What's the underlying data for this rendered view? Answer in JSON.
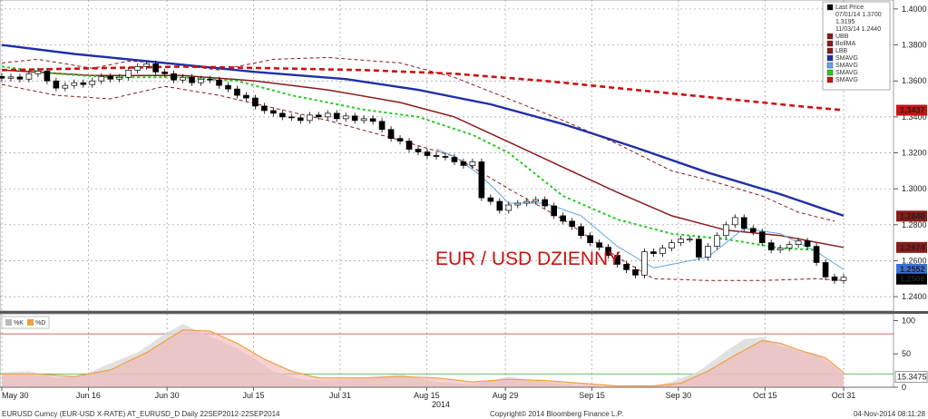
{
  "chart_data": [
    {
      "type": "line",
      "subtype": "candlestick",
      "annotation": "EUR / USD DZIENNY",
      "ylim": [
        1.232,
        1.405
      ],
      "y_ticks": [
        "1.4000",
        "1.3800",
        "1.3600",
        "1.3400",
        "1.3200",
        "1.3000",
        "1.2800",
        "1.2600",
        "1.2400"
      ],
      "x_ticks": [
        "May 30",
        "Jun 16",
        "Jun 30",
        "Jul 15",
        "Jul 31",
        "Aug 15",
        "Aug 29",
        "Sep 15",
        "Sep 30",
        "Oct 15",
        "Oct 31"
      ],
      "x_year": "2014",
      "legend": [
        {
          "name": "Last Price",
          "color": "#000000",
          "sub": [
            "07/01/14 1.3700",
            "1.3195",
            "11/03/14 1.2440"
          ]
        },
        {
          "name": "UBB",
          "color": "#8b1a1a"
        },
        {
          "name": "BollMA",
          "color": "#8b1a1a"
        },
        {
          "name": "LBB",
          "color": "#8b1a1a"
        },
        {
          "name": "SMAVG",
          "color": "#1f2fa8"
        },
        {
          "name": "SMAVG",
          "color": "#5fa5e6"
        },
        {
          "name": "SMAVG",
          "color": "#22cc22"
        },
        {
          "name": "SMAVG",
          "color": "#cc1111"
        }
      ],
      "price_labels": [
        {
          "value": "1.3437",
          "color": "#cc1111"
        },
        {
          "value": "1.2848",
          "color": "#8b1a1a"
        },
        {
          "value": "1.2674",
          "color": "#8b1a1a"
        },
        {
          "value": "1.2552",
          "color": "#3b6fd8"
        },
        {
          "value": "1.2508",
          "color": "#000000"
        }
      ],
      "close": [
        1.3615,
        1.3622,
        1.361,
        1.364,
        1.3655,
        1.36,
        1.356,
        1.3575,
        1.359,
        1.358,
        1.36,
        1.3625,
        1.361,
        1.362,
        1.366,
        1.368,
        1.3695,
        1.365,
        1.364,
        1.3605,
        1.362,
        1.359,
        1.361,
        1.3605,
        1.3575,
        1.3555,
        1.352,
        1.3505,
        1.346,
        1.3435,
        1.342,
        1.34,
        1.3395,
        1.338,
        1.341,
        1.34,
        1.342,
        1.339,
        1.3405,
        1.338,
        1.339,
        1.3375,
        1.333,
        1.328,
        1.3265,
        1.322,
        1.3205,
        1.3185,
        1.318,
        1.3175,
        1.315,
        1.313,
        1.315,
        1.295,
        1.293,
        1.288,
        1.291,
        1.292,
        1.293,
        1.294,
        1.2905,
        1.285,
        1.282,
        1.279,
        1.274,
        1.27,
        1.2675,
        1.263,
        1.258,
        1.255,
        1.252,
        1.265,
        1.264,
        1.267,
        1.27,
        1.272,
        1.272,
        1.262,
        1.268,
        1.274,
        1.28,
        1.284,
        1.278,
        1.276,
        1.27,
        1.266,
        1.267,
        1.269,
        1.271,
        1.268,
        1.259,
        1.251,
        1.249,
        1.2508
      ],
      "series": [
        {
          "name": "UBB",
          "values": [
            {
              "x": 0,
              "y": 1.37
            },
            {
              "x": 4,
              "y": 1.372
            },
            {
              "x": 10,
              "y": 1.367
            },
            {
              "x": 14,
              "y": 1.371
            },
            {
              "x": 18,
              "y": 1.37
            },
            {
              "x": 24,
              "y": 1.366
            },
            {
              "x": 30,
              "y": 1.372
            },
            {
              "x": 36,
              "y": 1.373
            },
            {
              "x": 44,
              "y": 1.37
            },
            {
              "x": 50,
              "y": 1.362
            },
            {
              "x": 56,
              "y": 1.35
            },
            {
              "x": 62,
              "y": 1.338
            },
            {
              "x": 68,
              "y": 1.325
            },
            {
              "x": 74,
              "y": 1.31
            },
            {
              "x": 78,
              "y": 1.305
            },
            {
              "x": 84,
              "y": 1.296
            },
            {
              "x": 88,
              "y": 1.287
            },
            {
              "x": 92,
              "y": 1.282
            }
          ]
        },
        {
          "name": "BollMA",
          "values": [
            {
              "x": 0,
              "y": 1.366
            },
            {
              "x": 10,
              "y": 1.363
            },
            {
              "x": 20,
              "y": 1.363
            },
            {
              "x": 28,
              "y": 1.36
            },
            {
              "x": 36,
              "y": 1.355
            },
            {
              "x": 44,
              "y": 1.348
            },
            {
              "x": 50,
              "y": 1.34
            },
            {
              "x": 56,
              "y": 1.326
            },
            {
              "x": 62,
              "y": 1.312
            },
            {
              "x": 68,
              "y": 1.298
            },
            {
              "x": 74,
              "y": 1.285
            },
            {
              "x": 80,
              "y": 1.277
            },
            {
              "x": 86,
              "y": 1.274
            },
            {
              "x": 93,
              "y": 1.2674
            }
          ]
        },
        {
          "name": "LBB",
          "values": [
            {
              "x": 0,
              "y": 1.358
            },
            {
              "x": 6,
              "y": 1.352
            },
            {
              "x": 12,
              "y": 1.35
            },
            {
              "x": 18,
              "y": 1.357
            },
            {
              "x": 24,
              "y": 1.352
            },
            {
              "x": 30,
              "y": 1.345
            },
            {
              "x": 36,
              "y": 1.338
            },
            {
              "x": 44,
              "y": 1.327
            },
            {
              "x": 50,
              "y": 1.318
            },
            {
              "x": 56,
              "y": 1.3
            },
            {
              "x": 62,
              "y": 1.283
            },
            {
              "x": 68,
              "y": 1.262
            },
            {
              "x": 72,
              "y": 1.25
            },
            {
              "x": 78,
              "y": 1.249
            },
            {
              "x": 84,
              "y": 1.249
            },
            {
              "x": 90,
              "y": 1.25
            },
            {
              "x": 93,
              "y": 1.249
            }
          ]
        },
        {
          "name": "SMAVG",
          "color": "#1f2fa8",
          "values": [
            {
              "x": 0,
              "y": 1.38
            },
            {
              "x": 8,
              "y": 1.375
            },
            {
              "x": 18,
              "y": 1.37
            },
            {
              "x": 28,
              "y": 1.365
            },
            {
              "x": 38,
              "y": 1.361
            },
            {
              "x": 46,
              "y": 1.355
            },
            {
              "x": 54,
              "y": 1.347
            },
            {
              "x": 62,
              "y": 1.336
            },
            {
              "x": 70,
              "y": 1.323
            },
            {
              "x": 78,
              "y": 1.309
            },
            {
              "x": 86,
              "y": 1.297
            },
            {
              "x": 93,
              "y": 1.285
            }
          ]
        },
        {
          "name": "SMAVG",
          "color": "#5fa5e6",
          "values": [
            {
              "x": 48,
              "y": 1.322
            },
            {
              "x": 50,
              "y": 1.318
            },
            {
              "x": 53,
              "y": 1.307
            },
            {
              "x": 56,
              "y": 1.292
            },
            {
              "x": 60,
              "y": 1.292
            },
            {
              "x": 64,
              "y": 1.285
            },
            {
              "x": 68,
              "y": 1.268
            },
            {
              "x": 72,
              "y": 1.256
            },
            {
              "x": 74,
              "y": 1.258
            },
            {
              "x": 78,
              "y": 1.262
            },
            {
              "x": 82,
              "y": 1.278
            },
            {
              "x": 86,
              "y": 1.275
            },
            {
              "x": 90,
              "y": 1.265
            },
            {
              "x": 93,
              "y": 1.2552
            }
          ]
        },
        {
          "name": "SMAVG",
          "color": "#22cc22",
          "values": [
            {
              "x": 0,
              "y": 1.368
            },
            {
              "x": 6,
              "y": 1.364
            },
            {
              "x": 12,
              "y": 1.362
            },
            {
              "x": 20,
              "y": 1.362
            },
            {
              "x": 26,
              "y": 1.36
            },
            {
              "x": 32,
              "y": 1.352
            },
            {
              "x": 40,
              "y": 1.344
            },
            {
              "x": 46,
              "y": 1.34
            },
            {
              "x": 52,
              "y": 1.33
            },
            {
              "x": 56,
              "y": 1.32
            },
            {
              "x": 62,
              "y": 1.296
            },
            {
              "x": 68,
              "y": 1.283
            },
            {
              "x": 74,
              "y": 1.275
            },
            {
              "x": 80,
              "y": 1.272
            },
            {
              "x": 86,
              "y": 1.267
            },
            {
              "x": 90,
              "y": 1.266
            }
          ]
        },
        {
          "name": "SMAVG",
          "color": "#cc1111",
          "values": [
            {
              "x": 0,
              "y": 1.366
            },
            {
              "x": 10,
              "y": 1.367
            },
            {
              "x": 20,
              "y": 1.368
            },
            {
              "x": 30,
              "y": 1.367
            },
            {
              "x": 40,
              "y": 1.366
            },
            {
              "x": 50,
              "y": 1.364
            },
            {
              "x": 60,
              "y": 1.36
            },
            {
              "x": 70,
              "y": 1.355
            },
            {
              "x": 80,
              "y": 1.35
            },
            {
              "x": 88,
              "y": 1.346
            },
            {
              "x": 93,
              "y": 1.3437
            }
          ]
        }
      ]
    },
    {
      "type": "area",
      "legend": [
        {
          "name": "%K",
          "color": "#b8b8b8"
        },
        {
          "name": "%D",
          "color": "#f0a040"
        }
      ],
      "ylim": [
        0,
        110
      ],
      "y_ticks": [
        "100",
        "50",
        "0"
      ],
      "ref_lines": [
        {
          "y": 80,
          "color": "#cc3333"
        },
        {
          "y": 20,
          "color": "#33aa33"
        }
      ],
      "price_labels": [
        {
          "value": "15.3475",
          "color": "#ffffff"
        }
      ],
      "series": [
        {
          "name": "%K",
          "values": [
            {
              "x": 0,
              "y": 22
            },
            {
              "x": 3,
              "y": 24
            },
            {
              "x": 6,
              "y": 14
            },
            {
              "x": 9,
              "y": 18
            },
            {
              "x": 12,
              "y": 36
            },
            {
              "x": 15,
              "y": 52
            },
            {
              "x": 18,
              "y": 80
            },
            {
              "x": 20,
              "y": 95
            },
            {
              "x": 22,
              "y": 82
            },
            {
              "x": 24,
              "y": 70
            },
            {
              "x": 26,
              "y": 58
            },
            {
              "x": 28,
              "y": 42
            },
            {
              "x": 30,
              "y": 24
            },
            {
              "x": 33,
              "y": 12
            },
            {
              "x": 36,
              "y": 10
            },
            {
              "x": 40,
              "y": 14
            },
            {
              "x": 44,
              "y": 20
            },
            {
              "x": 48,
              "y": 8
            },
            {
              "x": 52,
              "y": 4
            },
            {
              "x": 56,
              "y": 16
            },
            {
              "x": 60,
              "y": 8
            },
            {
              "x": 64,
              "y": 2
            },
            {
              "x": 68,
              "y": 0
            },
            {
              "x": 72,
              "y": 2
            },
            {
              "x": 74,
              "y": 8
            },
            {
              "x": 77,
              "y": 24
            },
            {
              "x": 80,
              "y": 54
            },
            {
              "x": 82,
              "y": 72
            },
            {
              "x": 84,
              "y": 75
            },
            {
              "x": 86,
              "y": 62
            },
            {
              "x": 88,
              "y": 54
            },
            {
              "x": 90,
              "y": 50
            },
            {
              "x": 92,
              "y": 30
            },
            {
              "x": 93,
              "y": 18
            }
          ]
        },
        {
          "name": "%D",
          "values": [
            {
              "x": 0,
              "y": 20
            },
            {
              "x": 4,
              "y": 20
            },
            {
              "x": 8,
              "y": 16
            },
            {
              "x": 12,
              "y": 26
            },
            {
              "x": 16,
              "y": 52
            },
            {
              "x": 20,
              "y": 86
            },
            {
              "x": 23,
              "y": 84
            },
            {
              "x": 26,
              "y": 66
            },
            {
              "x": 29,
              "y": 42
            },
            {
              "x": 32,
              "y": 24
            },
            {
              "x": 35,
              "y": 14
            },
            {
              "x": 40,
              "y": 14
            },
            {
              "x": 44,
              "y": 16
            },
            {
              "x": 48,
              "y": 14
            },
            {
              "x": 52,
              "y": 8
            },
            {
              "x": 56,
              "y": 12
            },
            {
              "x": 60,
              "y": 10
            },
            {
              "x": 64,
              "y": 6
            },
            {
              "x": 68,
              "y": 2
            },
            {
              "x": 72,
              "y": 2
            },
            {
              "x": 75,
              "y": 6
            },
            {
              "x": 78,
              "y": 24
            },
            {
              "x": 81,
              "y": 48
            },
            {
              "x": 84,
              "y": 70
            },
            {
              "x": 86,
              "y": 66
            },
            {
              "x": 88,
              "y": 56
            },
            {
              "x": 91,
              "y": 44
            },
            {
              "x": 93,
              "y": 22
            }
          ]
        }
      ]
    }
  ],
  "footer": {
    "left": "EURUSD Curncy (EUR-USD X-RATE) AT_EURUSD_D  Daily 22SEP2012-22SEP2014",
    "center": "Copyright© 2014 Bloomberg Finance L.P.",
    "right": "04-Nov-2014 08:11:28"
  }
}
